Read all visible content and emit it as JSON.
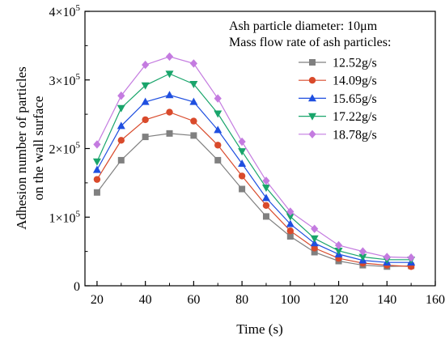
{
  "chart_data": {
    "type": "line",
    "title": "",
    "xlabel": "Time (s)",
    "ylabel_lines": [
      "Adhesion number of particles",
      "on the wall surface"
    ],
    "xlim": [
      15,
      160
    ],
    "ylim": [
      0,
      400000
    ],
    "x_ticks": [
      20,
      40,
      60,
      80,
      100,
      120,
      140,
      160
    ],
    "x_tick_labels": [
      "20",
      "40",
      "60",
      "80",
      "100",
      "120",
      "140",
      "160"
    ],
    "y_ticks": [
      0,
      100000,
      200000,
      300000,
      400000
    ],
    "y_tick_labels": [
      {
        "mantissa": "0",
        "exp": ""
      },
      {
        "mantissa": "1×10",
        "exp": "5"
      },
      {
        "mantissa": "2×10",
        "exp": "5"
      },
      {
        "mantissa": "3×10",
        "exp": "5"
      },
      {
        "mantissa": "4×10",
        "exp": "5"
      }
    ],
    "legend_title_1": "Ash particle diameter:  10μm",
    "legend_title_2": "Mass flow rate of ash particles:",
    "legend_position": "top-right",
    "grid": false,
    "x": [
      20,
      30,
      40,
      50,
      60,
      70,
      80,
      90,
      100,
      110,
      120,
      130,
      140,
      150
    ],
    "series": [
      {
        "name": "12.52g/s",
        "color": "#808080",
        "marker": "square",
        "values": [
          136000,
          183000,
          217000,
          222000,
          219000,
          183000,
          141000,
          101000,
          72000,
          49000,
          36000,
          30000,
          28000,
          29000
        ]
      },
      {
        "name": "14.09g/s",
        "color": "#d94a2b",
        "marker": "circle",
        "values": [
          155000,
          212000,
          242000,
          253000,
          240000,
          205000,
          160000,
          117000,
          80000,
          55000,
          40000,
          33000,
          30000,
          28000
        ]
      },
      {
        "name": "15.65g/s",
        "color": "#1f4fe0",
        "marker": "triangle-up",
        "values": [
          169000,
          233000,
          268000,
          278000,
          268000,
          227000,
          178000,
          128000,
          90000,
          62000,
          46000,
          37000,
          34000,
          34000
        ]
      },
      {
        "name": "17.22g/s",
        "color": "#19a56b",
        "marker": "triangle-down",
        "values": [
          181000,
          259000,
          292000,
          309000,
          294000,
          251000,
          196000,
          143000,
          101000,
          69000,
          51000,
          42000,
          38000,
          38000
        ]
      },
      {
        "name": "18.78g/s",
        "color": "#c47be0",
        "marker": "diamond",
        "values": [
          206000,
          277000,
          322000,
          334000,
          324000,
          273000,
          210000,
          153000,
          108000,
          83000,
          59000,
          50000,
          42000,
          41000
        ]
      }
    ]
  }
}
